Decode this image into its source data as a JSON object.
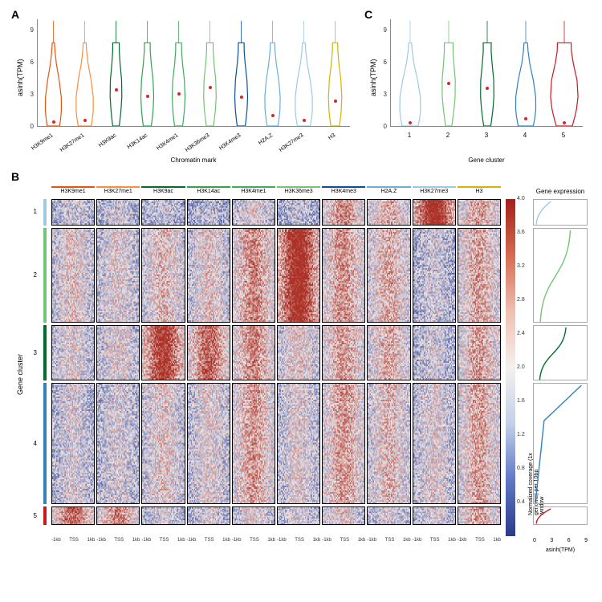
{
  "panels": {
    "A": "A",
    "B": "B",
    "C": "C"
  },
  "y_axis": {
    "label": "asinh(TPM)",
    "ticks": [
      0,
      3,
      6,
      9
    ],
    "lim": [
      0,
      10
    ]
  },
  "panelA": {
    "x_label": "Chromatin mark",
    "violins": [
      {
        "label": "H3K9me1",
        "color": "#e6550d",
        "median": 0.35,
        "width_top": 0.15,
        "width_bot": 0.85
      },
      {
        "label": "H3K27me1",
        "color": "#fd8d3c",
        "median": 0.5,
        "width_top": 0.2,
        "width_bot": 0.9
      },
      {
        "label": "H3K9ac",
        "color": "#006d2c",
        "median": 3.4,
        "width_top": 0.45,
        "width_bot": 0.45
      },
      {
        "label": "H3K14ac",
        "color": "#31a354",
        "median": 2.8,
        "width_top": 0.4,
        "width_bot": 0.55
      },
      {
        "label": "H3K4me1",
        "color": "#41ab5d",
        "median": 3.0,
        "width_top": 0.4,
        "width_bot": 0.55
      },
      {
        "label": "H3K36me3",
        "color": "#74c476",
        "median": 3.6,
        "width_top": 0.45,
        "width_bot": 0.5
      },
      {
        "label": "H3K4me3",
        "color": "#08519c",
        "median": 2.7,
        "width_top": 0.4,
        "width_bot": 0.55
      },
      {
        "label": "H2A.Z",
        "color": "#6baed6",
        "median": 1.0,
        "width_top": 0.3,
        "width_bot": 0.75
      },
      {
        "label": "H3K27me3",
        "color": "#9ecae1",
        "median": 0.5,
        "width_top": 0.2,
        "width_bot": 0.9
      },
      {
        "label": "H3",
        "color": "#d4b400",
        "median": 2.3,
        "width_top": 0.35,
        "width_bot": 0.6
      }
    ]
  },
  "panelC": {
    "x_label": "Gene cluster",
    "violins": [
      {
        "label": "1",
        "color": "#9ecae1",
        "median": 0.3,
        "width_top": 0.15,
        "width_bot": 0.9
      },
      {
        "label": "2",
        "color": "#74c476",
        "median": 4.0,
        "width_top": 0.5,
        "width_bot": 0.35
      },
      {
        "label": "3",
        "color": "#006d2c",
        "median": 3.5,
        "width_top": 0.45,
        "width_bot": 0.4
      },
      {
        "label": "4",
        "color": "#3182bd",
        "median": 0.7,
        "width_top": 0.2,
        "width_bot": 0.85
      },
      {
        "label": "5",
        "color": "#cb181d",
        "median": 0.3,
        "width_top": 0.78,
        "width_bot": 0.9
      }
    ]
  },
  "panelB": {
    "y_label": "Gene cluster",
    "marks": [
      {
        "label": "H3K9me1",
        "color": "#e6550d"
      },
      {
        "label": "H3K27me1",
        "color": "#fd8d3c"
      },
      {
        "label": "H3K9ac",
        "color": "#006d2c"
      },
      {
        "label": "H3K14ac",
        "color": "#31a354"
      },
      {
        "label": "H3K4me1",
        "color": "#41ab5d"
      },
      {
        "label": "H3K36me3",
        "color": "#74c476"
      },
      {
        "label": "H3K4me3",
        "color": "#08519c"
      },
      {
        "label": "H2A.Z",
        "color": "#6baed6"
      },
      {
        "label": "H3K27me3",
        "color": "#9ecae1"
      },
      {
        "label": "H3",
        "color": "#d4b400"
      }
    ],
    "clusters": [
      {
        "label": "1",
        "color": "#9ecae1",
        "height": 0.08
      },
      {
        "label": "2",
        "color": "#74c476",
        "height": 0.29
      },
      {
        "label": "3",
        "color": "#006d2c",
        "height": 0.17
      },
      {
        "label": "4",
        "color": "#3182bd",
        "height": 0.37
      },
      {
        "label": "5",
        "color": "#cb181d",
        "height": 0.055
      }
    ],
    "bottom_ticks": [
      "-1kb",
      "TSS",
      "1kb"
    ],
    "colorbar": {
      "label": "Normalized coverage (1x genome) per 10bp window",
      "ticks": [
        0.4,
        0.8,
        1.2,
        1.6,
        2.0,
        2.4,
        2.8,
        3.2,
        3.6,
        4.0
      ],
      "min": 0.0,
      "max": 4.0
    },
    "expr": {
      "title": "Gene expression",
      "x_label": "asinh(TPM)",
      "x_ticks": [
        0,
        3,
        6,
        9
      ],
      "xlim": [
        0,
        10
      ]
    },
    "heat_enrichment": {
      "c1": {
        "H3K9me1": 0.2,
        "H3K27me1": 0.2,
        "H3K9ac": 0.18,
        "H3K14ac": 0.15,
        "H3K4me1": 0.3,
        "H3K36me3": 0.15,
        "H3K4me3": 0.55,
        "H2A.Z": 0.45,
        "H3K27me3": 0.92,
        "H3": 0.48
      },
      "c2": {
        "H3K9me1": 0.35,
        "H3K27me1": 0.3,
        "H3K9ac": 0.4,
        "H3K14ac": 0.35,
        "H3K4me1": 0.55,
        "H3K36me3": 0.9,
        "H3K4me3": 0.52,
        "H2A.Z": 0.45,
        "H3K27me3": 0.2,
        "H3": 0.48
      },
      "c3": {
        "H3K9me1": 0.3,
        "H3K27me1": 0.3,
        "H3K9ac": 0.8,
        "H3K14ac": 0.65,
        "H3K4me1": 0.55,
        "H3K36me3": 0.35,
        "H3K4me3": 0.5,
        "H2A.Z": 0.45,
        "H3K27me3": 0.22,
        "H3": 0.48
      },
      "c4": {
        "H3K9me1": 0.25,
        "H3K27me1": 0.25,
        "H3K9ac": 0.35,
        "H3K14ac": 0.3,
        "H3K4me1": 0.5,
        "H3K36me3": 0.3,
        "H3K4me3": 0.5,
        "H2A.Z": 0.4,
        "H3K27me3": 0.3,
        "H3": 0.48
      },
      "c5": {
        "H3K9me1": 0.65,
        "H3K27me1": 0.55,
        "H3K9ac": 0.25,
        "H3K14ac": 0.25,
        "H3K4me1": 0.3,
        "H3K36me3": 0.25,
        "H3K4me3": 0.35,
        "H2A.Z": 0.25,
        "H3K27me3": 0.25,
        "H3": 0.48
      }
    }
  }
}
